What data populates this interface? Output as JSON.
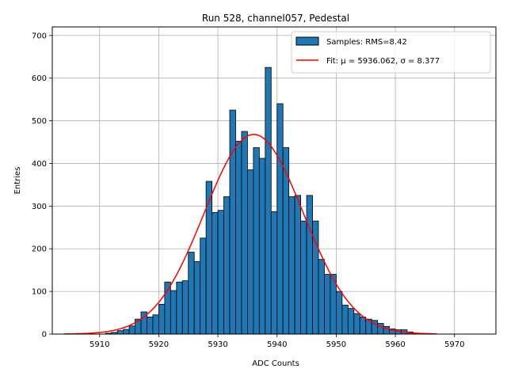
{
  "chart_data": {
    "type": "bar",
    "title": "Run 528, channel057, Pedestal",
    "xlabel": "ADC Counts",
    "ylabel": "Entries",
    "xlim": [
      5902,
      5977
    ],
    "ylim": [
      0,
      720
    ],
    "xticks": [
      5910,
      5920,
      5930,
      5940,
      5950,
      5960,
      5970
    ],
    "yticks": [
      0,
      100,
      200,
      300,
      400,
      500,
      600,
      700
    ],
    "grid": true,
    "legend_position": "top-right",
    "bin_width": 1,
    "bar_color": "#1f77b4",
    "fit_color": "#ff0000",
    "bins": [
      5904,
      5905,
      5906,
      5907,
      5908,
      5909,
      5910,
      5911,
      5912,
      5913,
      5914,
      5915,
      5916,
      5917,
      5918,
      5919,
      5920,
      5921,
      5922,
      5923,
      5924,
      5925,
      5926,
      5927,
      5928,
      5929,
      5930,
      5931,
      5932,
      5933,
      5934,
      5935,
      5936,
      5937,
      5938,
      5939,
      5940,
      5941,
      5942,
      5943,
      5944,
      5945,
      5946,
      5947,
      5948,
      5949,
      5950,
      5951,
      5952,
      5953,
      5954,
      5955,
      5956,
      5957,
      5958,
      5959,
      5960,
      5961,
      5962,
      5963,
      5964,
      5965,
      5966
    ],
    "counts": [
      0,
      1,
      1,
      0,
      0,
      0,
      0,
      2,
      4,
      8,
      11,
      19,
      35,
      52,
      40,
      45,
      70,
      122,
      102,
      122,
      125,
      192,
      170,
      225,
      358,
      285,
      290,
      322,
      525,
      452,
      475,
      385,
      437,
      412,
      625,
      287,
      540,
      437,
      322,
      325,
      265,
      325,
      265,
      175,
      140,
      140,
      100,
      68,
      60,
      48,
      40,
      35,
      32,
      25,
      18,
      12,
      10,
      10,
      5,
      0,
      0,
      0,
      0
    ],
    "series": [
      {
        "name": "Samples: RMS=8.42",
        "type": "histogram"
      },
      {
        "name": "Fit: μ = 5936.062, σ = 8.377",
        "type": "line",
        "mu": 5936.062,
        "sigma": 8.377,
        "amplitude": 468,
        "x_range": [
          5904,
          5967
        ]
      }
    ]
  }
}
